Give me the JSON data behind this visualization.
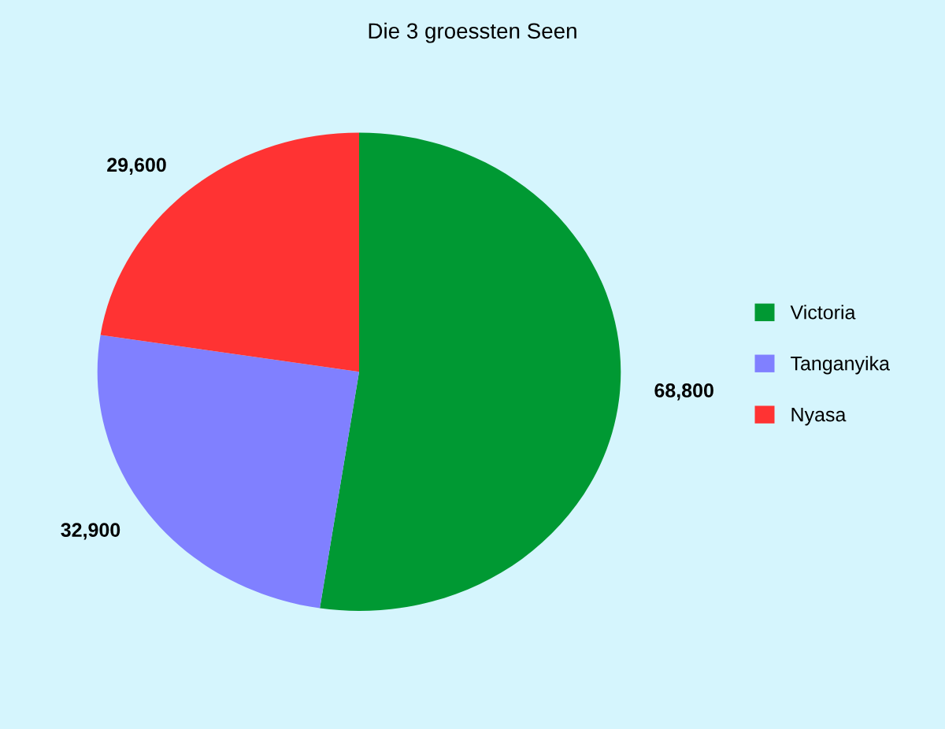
{
  "chart_data": {
    "type": "pie",
    "title": "Die 3 groessten Seen",
    "categories": [
      "Victoria",
      "Tanganyika",
      "Nyasa"
    ],
    "values": [
      68800,
      32900,
      29600
    ],
    "value_labels": [
      "68,800",
      "32,900",
      "29,600"
    ],
    "colors": [
      "#009933",
      "#8080ff",
      "#ff3333"
    ],
    "legend": "right"
  }
}
